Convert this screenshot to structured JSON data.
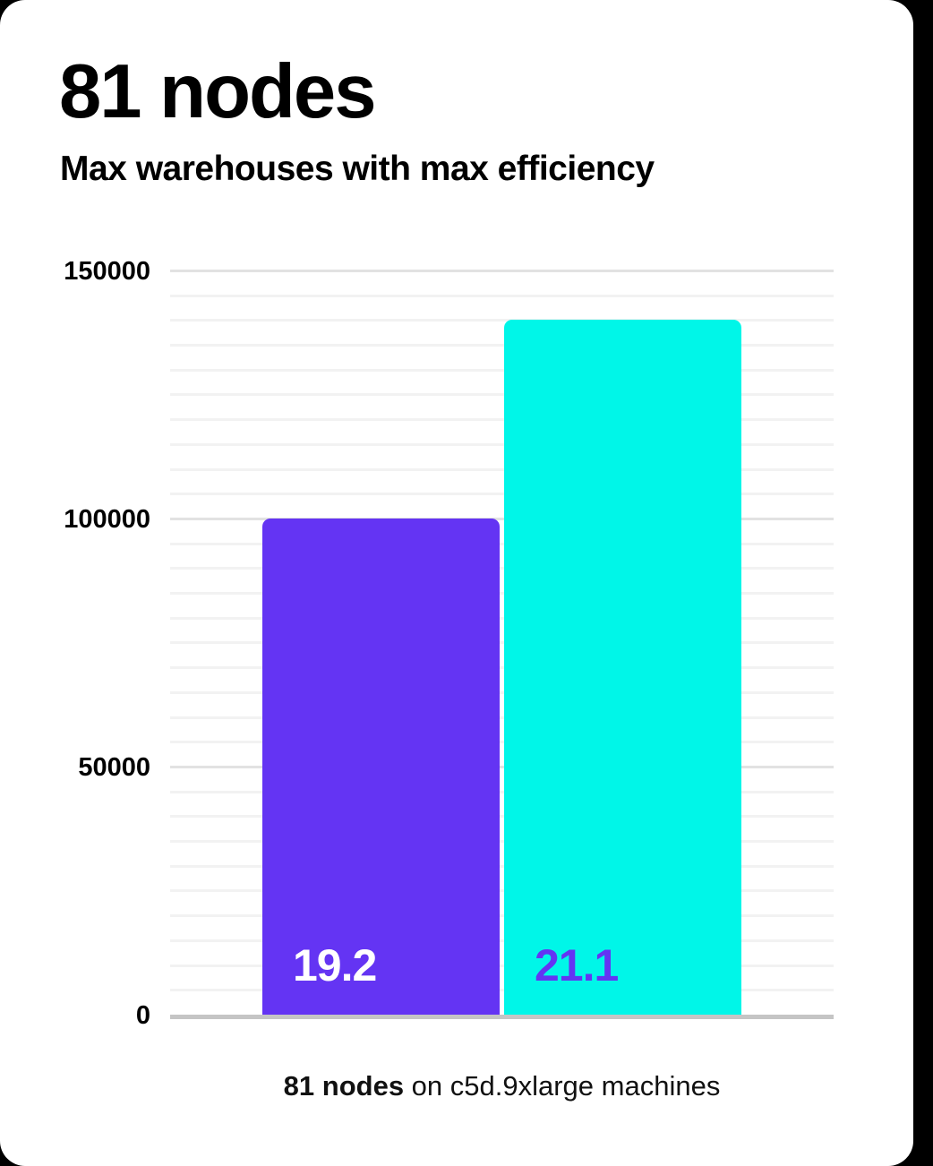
{
  "header": {
    "title": "81 nodes",
    "subtitle": "Max warehouses with max efficiency"
  },
  "caption": {
    "bold": "81 nodes",
    "rest": " on c5d.9xlarge machines"
  },
  "colors": {
    "background": "#000000",
    "card": "#ffffff",
    "purple": "#6434f3",
    "cyan": "#00f6e8",
    "major_gridline": "#e2e2e2",
    "minor_gridline": "#f2f2f2",
    "axis_line": "#c5c5c5"
  },
  "chart_data": {
    "type": "bar",
    "title": "81 nodes",
    "subtitle": "Max warehouses with max efficiency",
    "categories": [
      "19.2",
      "21.1"
    ],
    "values": [
      100000,
      140000
    ],
    "bar_value_labels": [
      "19.2",
      "21.1"
    ],
    "bar_colors": [
      "#6434f3",
      "#00f6e8"
    ],
    "bar_label_colors": [
      "#ffffff",
      "#6434f3"
    ],
    "xlabel": "",
    "ylabel": "",
    "ylim": [
      0,
      150000
    ],
    "yticks": [
      0,
      50000,
      100000,
      150000
    ],
    "ytick_labels": [
      "0",
      "50000",
      "100000",
      "150000"
    ],
    "minor_gridline_step": 5000,
    "grid": true,
    "legend": false,
    "annotation": "81 nodes on c5d.9xlarge machines"
  }
}
